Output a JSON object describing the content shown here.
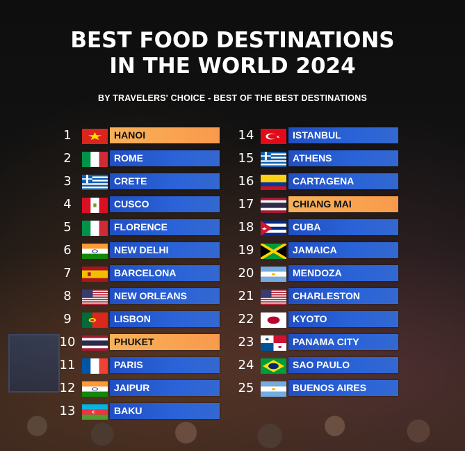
{
  "title_line1": "BEST FOOD DESTINATIONS",
  "title_line2": "IN THE WORLD 2024",
  "subtitle": "BY TRAVELERS' CHOICE - BEST OF THE BEST DESTINATIONS",
  "accent_colors": {
    "blue_bar": "#2a63d8",
    "highlight_bar": "#f9a34f"
  },
  "left_column": [
    {
      "rank": "1",
      "city": "HANOI",
      "flag": "vietnam-flag-icon",
      "highlight": true
    },
    {
      "rank": "2",
      "city": "ROME",
      "flag": "italy-flag-icon",
      "highlight": false
    },
    {
      "rank": "3",
      "city": "CRETE",
      "flag": "greece-flag-icon",
      "highlight": false
    },
    {
      "rank": "4",
      "city": "CUSCO",
      "flag": "peru-flag-icon",
      "highlight": false
    },
    {
      "rank": "5",
      "city": "FLORENCE",
      "flag": "italy-flag-icon",
      "highlight": false
    },
    {
      "rank": "6",
      "city": "NEW DELHI",
      "flag": "india-flag-icon",
      "highlight": false
    },
    {
      "rank": "7",
      "city": "BARCELONA",
      "flag": "spain-flag-icon",
      "highlight": false
    },
    {
      "rank": "8",
      "city": "NEW ORLEANS",
      "flag": "usa-flag-icon",
      "highlight": false
    },
    {
      "rank": "9",
      "city": "LISBON",
      "flag": "portugal-flag-icon",
      "highlight": false
    },
    {
      "rank": "10",
      "city": "PHUKET",
      "flag": "thailand-flag-icon",
      "highlight": true
    },
    {
      "rank": "11",
      "city": "PARIS",
      "flag": "france-flag-icon",
      "highlight": false
    },
    {
      "rank": "12",
      "city": "JAIPUR",
      "flag": "india-flag-icon",
      "highlight": false
    },
    {
      "rank": "13",
      "city": "BAKU",
      "flag": "azerbaijan-flag-icon",
      "highlight": false
    }
  ],
  "right_column": [
    {
      "rank": "14",
      "city": "ISTANBUL",
      "flag": "turkey-flag-icon",
      "highlight": false
    },
    {
      "rank": "15",
      "city": "ATHENS",
      "flag": "greece-flag-icon",
      "highlight": false
    },
    {
      "rank": "16",
      "city": "CARTAGENA",
      "flag": "colombia-flag-icon",
      "highlight": false
    },
    {
      "rank": "17",
      "city": "CHIANG MAI",
      "flag": "thailand-flag-icon",
      "highlight": true
    },
    {
      "rank": "18",
      "city": "CUBA",
      "flag": "cuba-flag-icon",
      "highlight": false
    },
    {
      "rank": "19",
      "city": "JAMAICA",
      "flag": "jamaica-flag-icon",
      "highlight": false
    },
    {
      "rank": "20",
      "city": "MENDOZA",
      "flag": "argentina-flag-icon",
      "highlight": false
    },
    {
      "rank": "21",
      "city": "CHARLESTON",
      "flag": "usa-flag-icon",
      "highlight": false
    },
    {
      "rank": "22",
      "city": "KYOTO",
      "flag": "japan-flag-icon",
      "highlight": false
    },
    {
      "rank": "23",
      "city": "PANAMA CITY",
      "flag": "panama-flag-icon",
      "highlight": false
    },
    {
      "rank": "24",
      "city": "SAO PAULO",
      "flag": "brazil-flag-icon",
      "highlight": false
    },
    {
      "rank": "25",
      "city": "BUENOS AIRES",
      "flag": "argentina-flag-icon",
      "highlight": false
    }
  ]
}
